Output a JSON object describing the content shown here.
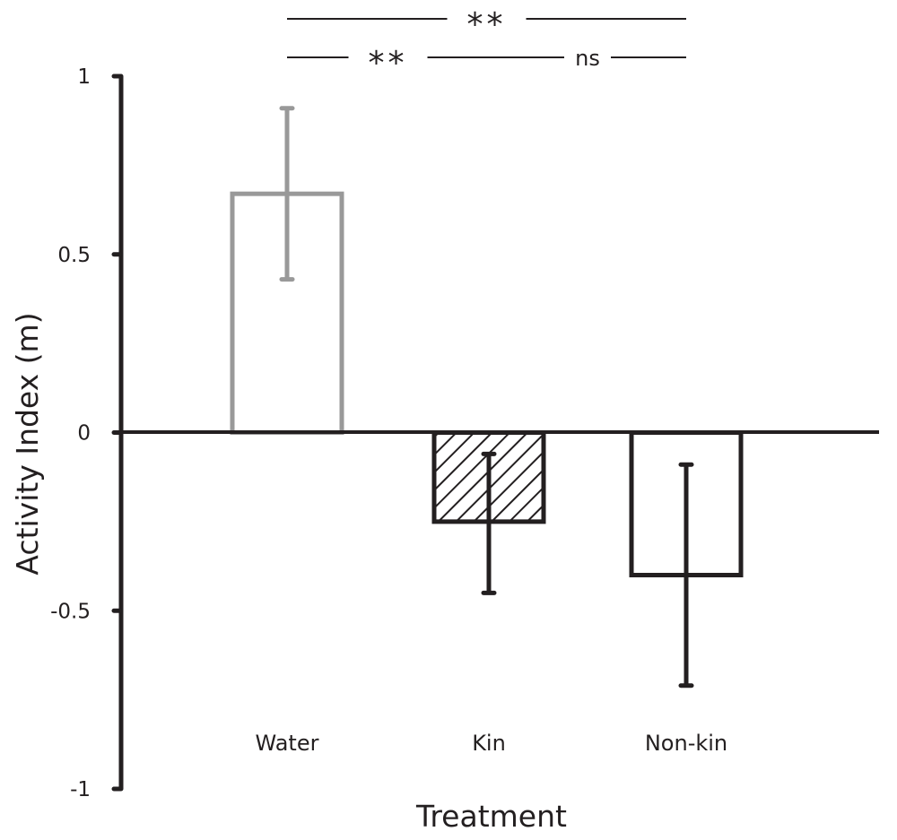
{
  "chart_data": {
    "type": "bar",
    "title": "",
    "xlabel": "Treatment",
    "ylabel": "Activity Index (m)",
    "ylim": [
      -1,
      1
    ],
    "yticks": [
      1,
      0.5,
      0,
      -0.5,
      -1
    ],
    "ytick_labels": [
      "1",
      "0.5",
      "0",
      "-0.5",
      "-1"
    ],
    "categories": [
      "Water",
      "Kin",
      "Non-kin"
    ],
    "values": [
      0.67,
      -0.25,
      -0.4
    ],
    "error_low": [
      0.43,
      -0.45,
      -0.71
    ],
    "error_high": [
      0.91,
      -0.06,
      -0.09
    ],
    "bar_styles": [
      {
        "stroke": "#999999",
        "fill": "none"
      },
      {
        "stroke": "#231f20",
        "fill": "hatch"
      },
      {
        "stroke": "#231f20",
        "fill": "none"
      }
    ],
    "grid": false,
    "significance": [
      {
        "from": "Water",
        "to": "Non-kin",
        "label": "**",
        "level": 2
      },
      {
        "from": "Water",
        "to": "Kin",
        "label": "**",
        "level": 1
      },
      {
        "from": "Kin",
        "to": "Non-kin",
        "label": "ns",
        "level": 1
      }
    ]
  }
}
